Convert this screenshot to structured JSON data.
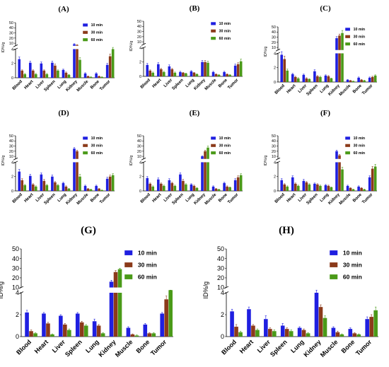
{
  "colors": {
    "10 min": "#1f1fe0",
    "30 min": "#8b3a1a",
    "60 min": "#4a9a18"
  },
  "chart_data": [
    {
      "type": "bar",
      "panel": "(A)",
      "ylabel": "ID%/g",
      "break": [
        4,
        5
      ],
      "ylim_low": [
        0,
        4
      ],
      "ylim_high": [
        5,
        50
      ],
      "legend_position": "top-right",
      "categories": [
        "Blood",
        "Heart",
        "Liver",
        "Spleen",
        "Lung",
        "Kidney",
        "Muscle",
        "Bone",
        "Tumor"
      ],
      "series": [
        {
          "name": "10 min",
          "values": [
            2.6,
            2.1,
            2.0,
            2.1,
            1.1,
            8.0,
            0.6,
            0.6,
            1.8
          ],
          "errors": [
            0.3,
            0.2,
            0.2,
            0.2,
            0.1,
            1.0,
            0.1,
            0.1,
            0.2
          ]
        },
        {
          "name": "30 min",
          "values": [
            1.0,
            1.0,
            1.0,
            1.7,
            0.7,
            6.5,
            0.2,
            0.2,
            3.0
          ],
          "errors": [
            0.1,
            0.1,
            0.1,
            0.2,
            0.1,
            0.8,
            0.05,
            0.05,
            0.3
          ]
        },
        {
          "name": "60 min",
          "values": [
            0.5,
            0.5,
            0.5,
            1.0,
            0.4,
            2.5,
            0.1,
            0.1,
            4.0
          ],
          "errors": [
            0.1,
            0.1,
            0.1,
            0.1,
            0.05,
            0.3,
            0.05,
            0.05,
            0.4
          ]
        }
      ]
    },
    {
      "type": "bar",
      "panel": "(B)",
      "ylabel": "ID%/g",
      "break": [
        4,
        5
      ],
      "ylim_low": [
        0,
        4
      ],
      "ylim_high": [
        5,
        50
      ],
      "legend_position": "top-right",
      "categories": [
        "Blood",
        "Heart",
        "Liver",
        "Spleen",
        "Lung",
        "Kidney",
        "Muscle",
        "Bone",
        "Tumor"
      ],
      "series": [
        {
          "name": "10 min",
          "values": [
            1.6,
            1.7,
            1.4,
            0.6,
            0.7,
            2.0,
            0.6,
            0.6,
            1.5
          ],
          "errors": [
            0.2,
            0.2,
            0.2,
            0.1,
            0.1,
            0.2,
            0.1,
            0.1,
            0.2
          ]
        },
        {
          "name": "30 min",
          "values": [
            0.8,
            1.0,
            1.0,
            0.5,
            0.5,
            2.0,
            0.3,
            0.3,
            1.7
          ],
          "errors": [
            0.1,
            0.1,
            0.1,
            0.05,
            0.05,
            0.2,
            0.05,
            0.05,
            0.2
          ]
        },
        {
          "name": "60 min",
          "values": [
            0.5,
            0.6,
            0.5,
            0.4,
            0.3,
            1.9,
            0.2,
            0.2,
            2.1
          ],
          "errors": [
            0.1,
            0.1,
            0.1,
            0.05,
            0.05,
            0.2,
            0.05,
            0.05,
            0.3
          ]
        }
      ]
    },
    {
      "type": "bar",
      "panel": "(C)",
      "ylabel": "ID%/g",
      "break": [
        4,
        5
      ],
      "ylim_low": [
        0,
        4
      ],
      "ylim_high": [
        5,
        50
      ],
      "legend_position": "top-right",
      "categories": [
        "Blood",
        "Heart",
        "Liver",
        "Spleen",
        "Lung",
        "Kidney",
        "Muscle",
        "Bone",
        "Tumor"
      ],
      "series": [
        {
          "name": "10 min",
          "values": [
            3.8,
            1.1,
            1.0,
            1.5,
            0.9,
            28,
            0.3,
            0.6,
            0.6
          ],
          "errors": [
            0.4,
            0.1,
            0.1,
            0.2,
            0.1,
            3,
            0.05,
            0.1,
            0.1
          ]
        },
        {
          "name": "30 min",
          "values": [
            3.2,
            0.7,
            0.5,
            0.8,
            0.8,
            33,
            0.2,
            0.3,
            0.7
          ],
          "errors": [
            0.4,
            0.1,
            0.1,
            0.1,
            0.1,
            3,
            0.05,
            0.05,
            0.1
          ]
        },
        {
          "name": "60 min",
          "values": [
            1.6,
            0.5,
            0.4,
            0.7,
            0.5,
            38,
            0.1,
            0.2,
            0.9
          ],
          "errors": [
            0.2,
            0.1,
            0.05,
            0.1,
            0.05,
            5,
            0.05,
            0.05,
            0.1
          ]
        }
      ]
    },
    {
      "type": "bar",
      "panel": "(D)",
      "ylabel": "ID%/g",
      "break": [
        4,
        5
      ],
      "ylim_low": [
        0,
        4
      ],
      "ylim_high": [
        5,
        50
      ],
      "legend_position": "top-right",
      "categories": [
        "Blood",
        "Heart",
        "Liver",
        "Spleen",
        "Lung",
        "Kidney",
        "Muscle",
        "Bone",
        "Tumor"
      ],
      "series": [
        {
          "name": "10 min",
          "values": [
            2.7,
            2.1,
            2.3,
            2.0,
            1.1,
            25,
            0.7,
            0.7,
            1.7
          ],
          "errors": [
            0.3,
            0.2,
            0.2,
            0.2,
            0.1,
            2,
            0.1,
            0.1,
            0.2
          ]
        },
        {
          "name": "30 min",
          "values": [
            1.5,
            0.9,
            1.4,
            1.2,
            0.6,
            20,
            0.3,
            0.3,
            2.0
          ],
          "errors": [
            0.2,
            0.1,
            0.2,
            0.1,
            0.1,
            2,
            0.05,
            0.05,
            0.2
          ]
        },
        {
          "name": "60 min",
          "values": [
            0.8,
            0.6,
            0.8,
            0.8,
            0.3,
            2.0,
            0.2,
            0.1,
            2.2
          ],
          "errors": [
            0.1,
            0.1,
            0.1,
            0.1,
            0.05,
            0.3,
            0.05,
            0.05,
            0.2
          ]
        }
      ]
    },
    {
      "type": "bar",
      "panel": "(E)",
      "ylabel": "ID%/g",
      "break": [
        4,
        5
      ],
      "ylim_low": [
        0,
        4
      ],
      "ylim_high": [
        5,
        50
      ],
      "legend_position": "top-right",
      "categories": [
        "Blood",
        "Heart",
        "Liver",
        "Spleen",
        "Lung",
        "Kidney",
        "Muscle",
        "Bone",
        "Tumor"
      ],
      "series": [
        {
          "name": "10 min",
          "values": [
            1.8,
            1.6,
            1.5,
            2.3,
            0.9,
            10,
            0.6,
            1.1,
            1.5
          ],
          "errors": [
            0.2,
            0.2,
            0.2,
            0.2,
            0.1,
            1,
            0.1,
            0.1,
            0.2
          ]
        },
        {
          "name": "30 min",
          "values": [
            1.0,
            1.0,
            1.1,
            1.4,
            0.7,
            20,
            0.3,
            0.6,
            1.9
          ],
          "errors": [
            0.1,
            0.1,
            0.1,
            0.2,
            0.1,
            2,
            0.05,
            0.1,
            0.2
          ]
        },
        {
          "name": "60 min",
          "values": [
            0.6,
            0.7,
            0.7,
            0.9,
            0.4,
            27,
            0.2,
            0.5,
            2.2
          ],
          "errors": [
            0.1,
            0.1,
            0.1,
            0.1,
            0.05,
            3,
            0.05,
            0.05,
            0.2
          ]
        }
      ]
    },
    {
      "type": "bar",
      "panel": "(F)",
      "ylabel": "ID%/g",
      "break": [
        4,
        5
      ],
      "ylim_low": [
        0,
        4
      ],
      "ylim_high": [
        5,
        50
      ],
      "legend_position": "top-right",
      "categories": [
        "Blood",
        "Heart",
        "Liver",
        "Spleen",
        "Lung",
        "Kidney",
        "Muscle",
        "Bone",
        "Tumor"
      ],
      "series": [
        {
          "name": "10 min",
          "values": [
            1.5,
            1.9,
            1.4,
            1.0,
            0.8,
            20,
            0.7,
            0.6,
            1.9
          ],
          "errors": [
            0.2,
            0.2,
            0.2,
            0.1,
            0.1,
            2,
            0.1,
            0.1,
            0.2
          ]
        },
        {
          "name": "30 min",
          "values": [
            0.9,
            1.0,
            1.2,
            0.9,
            0.7,
            12,
            0.4,
            0.4,
            3.1
          ],
          "errors": [
            0.1,
            0.1,
            0.1,
            0.1,
            0.1,
            1.5,
            0.05,
            0.05,
            0.3
          ]
        },
        {
          "name": "60 min",
          "values": [
            0.6,
            0.7,
            0.9,
            0.7,
            0.5,
            3.0,
            0.2,
            0.2,
            3.4
          ],
          "errors": [
            0.1,
            0.1,
            0.1,
            0.1,
            0.05,
            0.3,
            0.05,
            0.05,
            0.3
          ]
        }
      ]
    },
    {
      "type": "bar",
      "panel": "(G)",
      "ylabel": "ID%/g",
      "break": [
        4,
        10
      ],
      "ylim_low": [
        0,
        4
      ],
      "ylim_high": [
        10,
        50
      ],
      "legend_position": "top-right",
      "categories": [
        "Blood",
        "Heart",
        "Liver",
        "Spleen",
        "Lung",
        "Kidney",
        "Muscle",
        "Bone",
        "Tumor"
      ],
      "series": [
        {
          "name": "10 min",
          "values": [
            2.2,
            2.1,
            1.9,
            2.1,
            1.4,
            16,
            0.8,
            1.1,
            2.1
          ],
          "errors": [
            0.2,
            0.1,
            0.1,
            0.1,
            0.2,
            1.5,
            0.1,
            0.1,
            0.1
          ]
        },
        {
          "name": "30 min",
          "values": [
            0.5,
            1.2,
            1.1,
            1.3,
            1.0,
            26,
            0.2,
            0.3,
            3.4
          ],
          "errors": [
            0.1,
            0.1,
            0.1,
            0.1,
            0.1,
            1.5,
            0.05,
            0.05,
            0.3
          ]
        },
        {
          "name": "60 min",
          "values": [
            0.3,
            0.2,
            0.6,
            1.0,
            0.3,
            29,
            0.1,
            0.3,
            4.2
          ],
          "errors": [
            0.05,
            0.05,
            0.1,
            0.1,
            0.05,
            1.0,
            0.05,
            0.05,
            0.4
          ]
        }
      ]
    },
    {
      "type": "bar",
      "panel": "(H)",
      "ylabel": "ID%/g",
      "break": [
        4,
        10
      ],
      "ylim_low": [
        0,
        4
      ],
      "ylim_high": [
        10,
        50
      ],
      "legend_position": "top-right",
      "categories": [
        "Blood",
        "Heart",
        "Liver",
        "Spleen",
        "Lung",
        "Kidney",
        "Muscle",
        "Bone",
        "Tumor"
      ],
      "series": [
        {
          "name": "10 min",
          "values": [
            2.3,
            2.5,
            1.6,
            1.0,
            0.8,
            4.0,
            0.8,
            0.7,
            1.6
          ],
          "errors": [
            0.2,
            0.2,
            0.3,
            0.2,
            0.1,
            0.5,
            0.1,
            0.1,
            0.2
          ]
        },
        {
          "name": "30 min",
          "values": [
            0.9,
            1.0,
            0.7,
            0.7,
            0.6,
            2.7,
            0.4,
            0.3,
            1.8
          ],
          "errors": [
            0.2,
            0.1,
            0.1,
            0.1,
            0.1,
            0.2,
            0.1,
            0.05,
            0.2
          ]
        },
        {
          "name": "60 min",
          "values": [
            0.4,
            0.6,
            0.5,
            0.5,
            0.3,
            1.7,
            0.2,
            0.2,
            2.4
          ],
          "errors": [
            0.1,
            0.1,
            0.1,
            0.1,
            0.05,
            0.2,
            0.05,
            0.05,
            0.3
          ]
        }
      ]
    }
  ]
}
